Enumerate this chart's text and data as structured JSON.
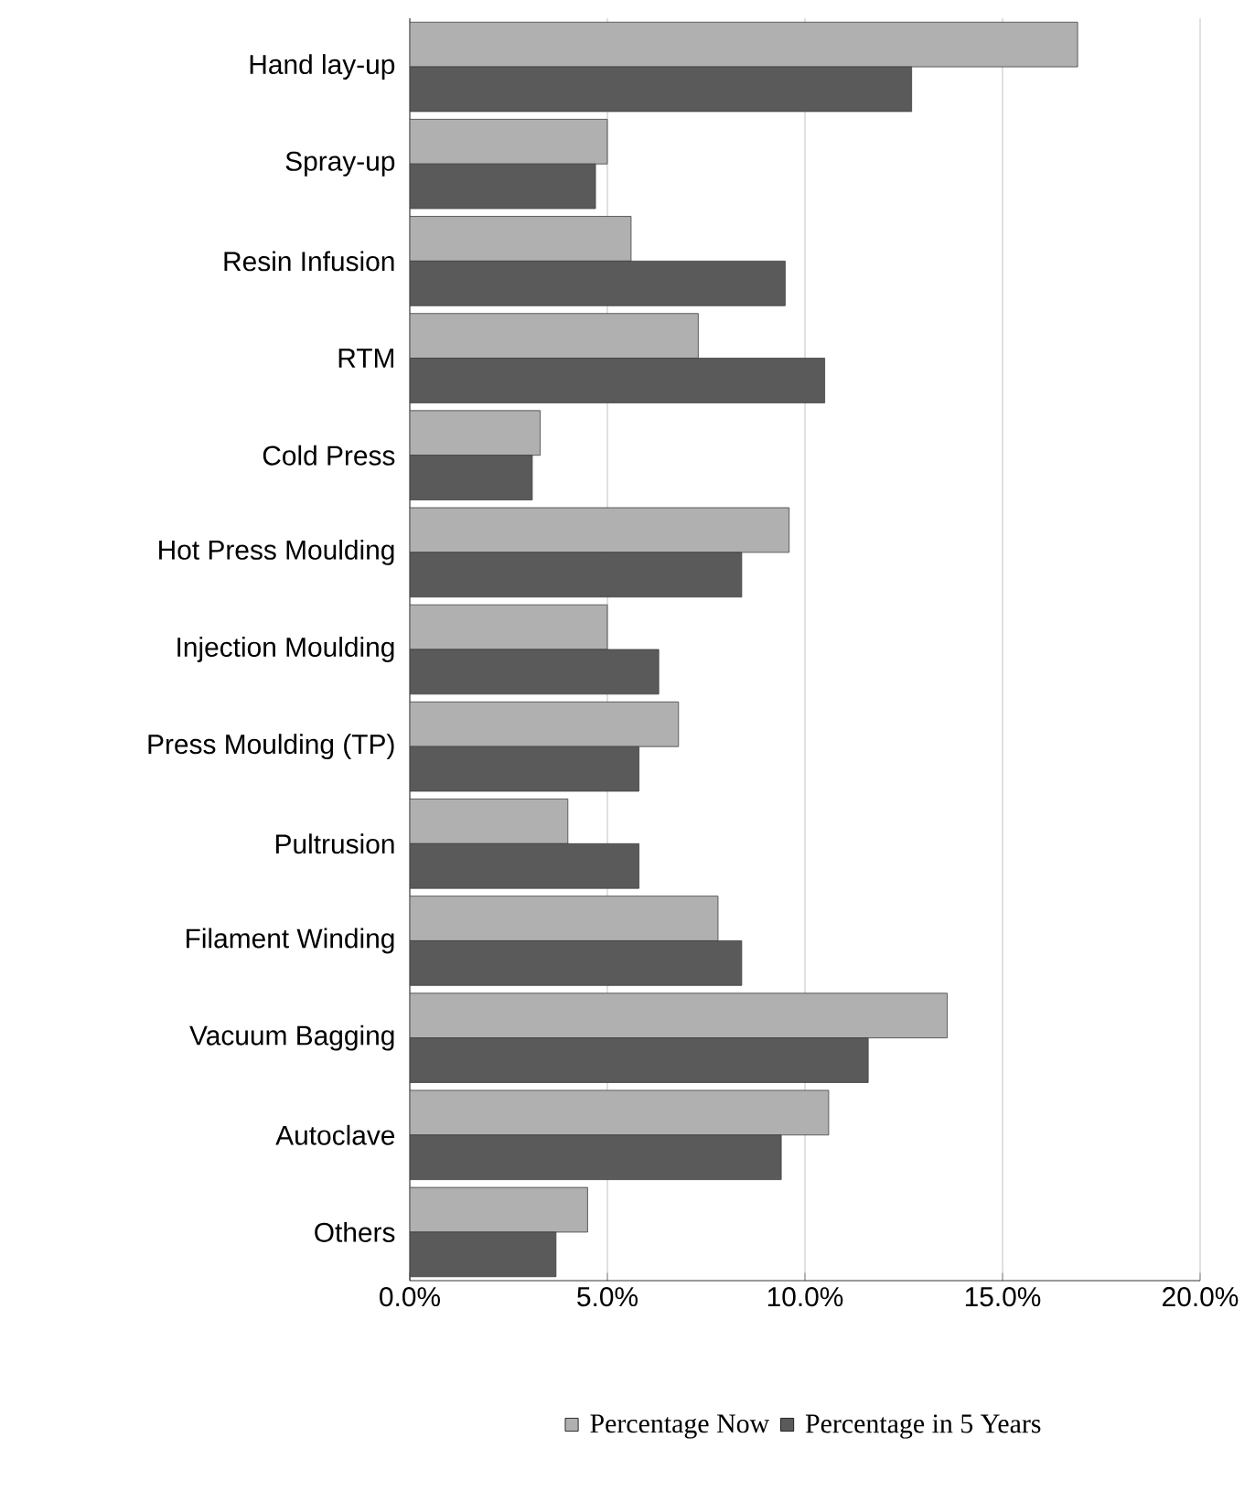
{
  "chart_data": {
    "type": "bar",
    "orientation": "horizontal",
    "categories": [
      "Hand lay-up",
      "Spray-up",
      "Resin Infusion",
      "RTM",
      "Cold Press",
      "Hot Press Moulding",
      "Injection Moulding",
      "Press Moulding (TP)",
      "Pultrusion",
      "Filament Winding",
      "Vacuum Bagging",
      "Autoclave",
      "Others"
    ],
    "series": [
      {
        "name": "Percentage Now",
        "color": "#b0b0b0",
        "values": [
          16.9,
          5.0,
          5.6,
          7.3,
          3.3,
          9.6,
          5.0,
          6.8,
          4.0,
          7.8,
          13.6,
          10.6,
          4.5
        ]
      },
      {
        "name": "Percentage in 5 Years",
        "color": "#5a5a5a",
        "values": [
          12.7,
          4.7,
          9.5,
          10.5,
          3.1,
          8.4,
          6.3,
          5.8,
          5.8,
          8.4,
          11.6,
          9.4,
          3.7
        ]
      }
    ],
    "xlim": [
      0,
      20
    ],
    "xticks": [
      {
        "value": 0,
        "label": "0.0%"
      },
      {
        "value": 5,
        "label": "5.0%"
      },
      {
        "value": 10,
        "label": "10.0%"
      },
      {
        "value": 15,
        "label": "15.0%"
      },
      {
        "value": 20,
        "label": "20.0%"
      }
    ],
    "grid": "x",
    "legend": "bottom"
  }
}
